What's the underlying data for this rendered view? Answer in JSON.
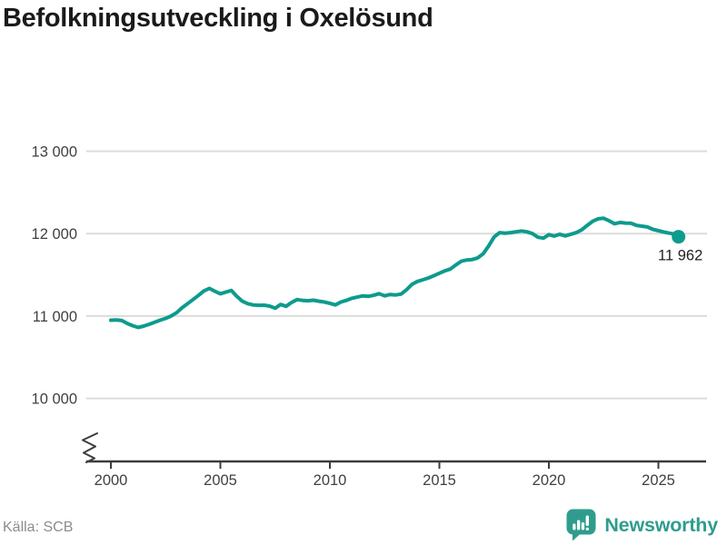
{
  "title": "Befolkningsutveckling i Oxelösund",
  "source": "Källa: SCB",
  "brand": {
    "name": "Newsworthy",
    "icon": "newsworthy-chart-bubble-icon",
    "color": "#2f9c8e"
  },
  "colors": {
    "line": "#0d9b8d",
    "grid": "#dcdcdc",
    "axis": "#3c3c3c",
    "tick_text": "#404040",
    "title_text": "#1a1a1a",
    "source_text": "#8b8b92"
  },
  "chart_data": {
    "type": "line",
    "title": "Befolkningsutveckling i Oxelösund",
    "xlabel": "",
    "ylabel": "",
    "grid": "horizontal",
    "legend": "none",
    "axis_break": true,
    "xlim": [
      1999.5,
      2026.5
    ],
    "ylim": [
      10000,
      13000
    ],
    "x_ticks": [
      2000,
      2005,
      2010,
      2015,
      2020,
      2025
    ],
    "x_tick_labels": [
      "2000",
      "2005",
      "2010",
      "2015",
      "2020",
      "2025"
    ],
    "y_ticks": [
      10000,
      11000,
      12000,
      13000
    ],
    "y_tick_labels": [
      "10 000",
      "11 000",
      "12 000",
      "13 000"
    ],
    "series": [
      {
        "name": "Befolkning i Oxelösund",
        "x": [
          2000.0,
          2000.25,
          2000.5,
          2000.75,
          2001.0,
          2001.25,
          2001.5,
          2001.75,
          2002.0,
          2002.25,
          2002.5,
          2002.75,
          2003.0,
          2003.25,
          2003.5,
          2003.75,
          2004.0,
          2004.25,
          2004.5,
          2004.75,
          2005.0,
          2005.25,
          2005.5,
          2005.75,
          2006.0,
          2006.25,
          2006.5,
          2006.75,
          2007.0,
          2007.25,
          2007.5,
          2007.75,
          2008.0,
          2008.25,
          2008.5,
          2008.75,
          2009.0,
          2009.25,
          2009.5,
          2009.75,
          2010.0,
          2010.25,
          2010.5,
          2010.75,
          2011.0,
          2011.25,
          2011.5,
          2011.75,
          2012.0,
          2012.25,
          2012.5,
          2012.75,
          2013.0,
          2013.25,
          2013.5,
          2013.75,
          2014.0,
          2014.25,
          2014.5,
          2014.75,
          2015.0,
          2015.25,
          2015.5,
          2015.75,
          2016.0,
          2016.25,
          2016.5,
          2016.75,
          2017.0,
          2017.25,
          2017.5,
          2017.75,
          2018.0,
          2018.25,
          2018.5,
          2018.75,
          2019.0,
          2019.25,
          2019.5,
          2019.75,
          2020.0,
          2020.25,
          2020.5,
          2020.75,
          2021.0,
          2021.25,
          2021.5,
          2021.75,
          2022.0,
          2022.25,
          2022.5,
          2022.75,
          2023.0,
          2023.25,
          2023.5,
          2023.75,
          2024.0,
          2024.25,
          2024.5,
          2024.75,
          2025.0,
          2025.25,
          2025.5,
          2025.75,
          2025.92
        ],
        "y": [
          10950,
          10952,
          10945,
          10910,
          10882,
          10862,
          10878,
          10900,
          10925,
          10950,
          10972,
          11000,
          11040,
          11100,
          11150,
          11200,
          11250,
          11305,
          11335,
          11300,
          11270,
          11290,
          11310,
          11240,
          11180,
          11150,
          11135,
          11130,
          11132,
          11120,
          11095,
          11140,
          11118,
          11165,
          11200,
          11190,
          11185,
          11192,
          11180,
          11170,
          11155,
          11135,
          11170,
          11190,
          11215,
          11230,
          11245,
          11238,
          11252,
          11272,
          11245,
          11262,
          11256,
          11266,
          11320,
          11385,
          11420,
          11440,
          11462,
          11490,
          11520,
          11548,
          11570,
          11620,
          11665,
          11680,
          11686,
          11706,
          11755,
          11850,
          11960,
          12012,
          12005,
          12012,
          12022,
          12032,
          12022,
          12000,
          11956,
          11945,
          11988,
          11970,
          11992,
          11972,
          11992,
          12012,
          12045,
          12100,
          12150,
          12180,
          12186,
          12155,
          12120,
          12136,
          12128,
          12126,
          12100,
          12090,
          12080,
          12052,
          12035,
          12020,
          12006,
          11995,
          11962
        ]
      }
    ],
    "last_point": {
      "x": 2025.92,
      "y": 11962,
      "label": "11 962"
    }
  }
}
